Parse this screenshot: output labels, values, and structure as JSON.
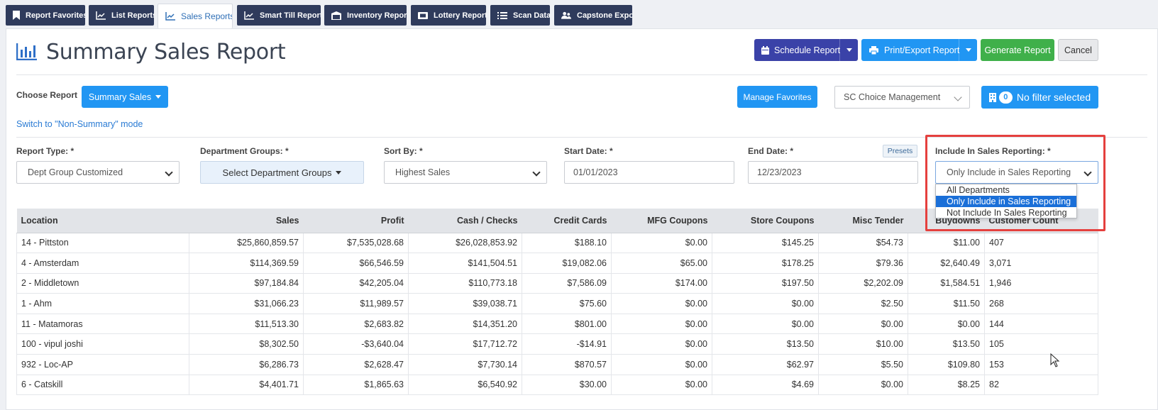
{
  "tabs": [
    {
      "label": "Report Favorites",
      "icon": "bookmark-icon"
    },
    {
      "label": "List Reports",
      "icon": "line-chart-icon"
    },
    {
      "label": "Sales Reports",
      "icon": "line-chart-icon",
      "active": true
    },
    {
      "label": "Smart Till Reports",
      "icon": "line-chart-icon"
    },
    {
      "label": "Inventory Reports",
      "icon": "warehouse-icon"
    },
    {
      "label": "Lottery Reports",
      "icon": "ticket-icon"
    },
    {
      "label": "Scan Data",
      "icon": "list-icon"
    },
    {
      "label": "Capstone Export",
      "icon": "users-icon"
    }
  ],
  "header": {
    "title": "Summary Sales Report",
    "schedule_label": "Schedule Report",
    "print_label": "Print/Export Report",
    "generate_label": "Generate Report",
    "cancel_label": "Cancel"
  },
  "choose": {
    "label": "Choose Report",
    "value": "Summary Sales",
    "manage_favorites": "Manage Favorites",
    "company": "SC Choice Management",
    "filter_count": "0",
    "filter_label": "No filter selected",
    "switch_link": "Switch to \"Non-Summary\" mode"
  },
  "filters": {
    "report_type_label": "Report Type: *",
    "report_type_value": "Dept Group Customized",
    "dept_groups_label": "Department Groups: *",
    "dept_groups_value": "Select Department Groups",
    "sort_by_label": "Sort By: *",
    "sort_by_value": "Highest Sales",
    "start_date_label": "Start Date: *",
    "start_date_value": "01/01/2023",
    "end_date_label": "End Date: *",
    "end_date_value": "12/23/2023",
    "presets_label": "Presets",
    "include_label": "Include In Sales Reporting: *",
    "include_value": "Only Include in Sales Reporting",
    "include_options": [
      "All Departments",
      "Only Include in Sales Reporting",
      "Not Include In Sales Reporting"
    ]
  },
  "table": {
    "columns": [
      "Location",
      "Sales",
      "Profit",
      "Cash / Checks",
      "Credit Cards",
      "MFG Coupons",
      "Store Coupons",
      "Misc Tender",
      "Buydowns",
      "Customer Count"
    ],
    "rows": [
      [
        "14 - Pittston",
        "$25,860,859.57",
        "$7,535,028.68",
        "$26,028,853.92",
        "$188.10",
        "$0.00",
        "$145.25",
        "$54.73",
        "$11.00",
        "407"
      ],
      [
        "4 - Amsterdam",
        "$114,369.59",
        "$66,546.59",
        "$141,504.51",
        "$19,082.06",
        "$65.00",
        "$178.25",
        "$79.36",
        "$2,640.49",
        "3,071"
      ],
      [
        "2 - Middletown",
        "$97,184.84",
        "$42,205.04",
        "$110,773.18",
        "$7,586.09",
        "$174.00",
        "$197.50",
        "$2,202.09",
        "$1,584.51",
        "1,946"
      ],
      [
        "1 - Ahm",
        "$31,066.23",
        "$11,989.57",
        "$39,038.71",
        "$75.60",
        "$0.00",
        "$0.00",
        "$2.50",
        "$11.50",
        "268"
      ],
      [
        "11 - Matamoras",
        "$11,513.30",
        "$2,683.82",
        "$14,351.20",
        "$801.00",
        "$0.00",
        "$0.00",
        "$0.00",
        "$0.00",
        "144"
      ],
      [
        "100 - vipul joshi",
        "$8,302.50",
        "-$3,640.04",
        "$17,712.72",
        "-$14.91",
        "$0.00",
        "$13.50",
        "$10.00",
        "$13.50",
        "105"
      ],
      [
        "932 - Loc-AP",
        "$6,286.73",
        "$2,628.47",
        "$7,730.14",
        "$870.57",
        "$0.00",
        "$62.97",
        "$5.50",
        "$109.80",
        "153"
      ],
      [
        "6 - Catskill",
        "$4,401.71",
        "$1,865.63",
        "$6,540.92",
        "$30.00",
        "$0.00",
        "$4.69",
        "$0.00",
        "$8.25",
        "82"
      ]
    ]
  }
}
